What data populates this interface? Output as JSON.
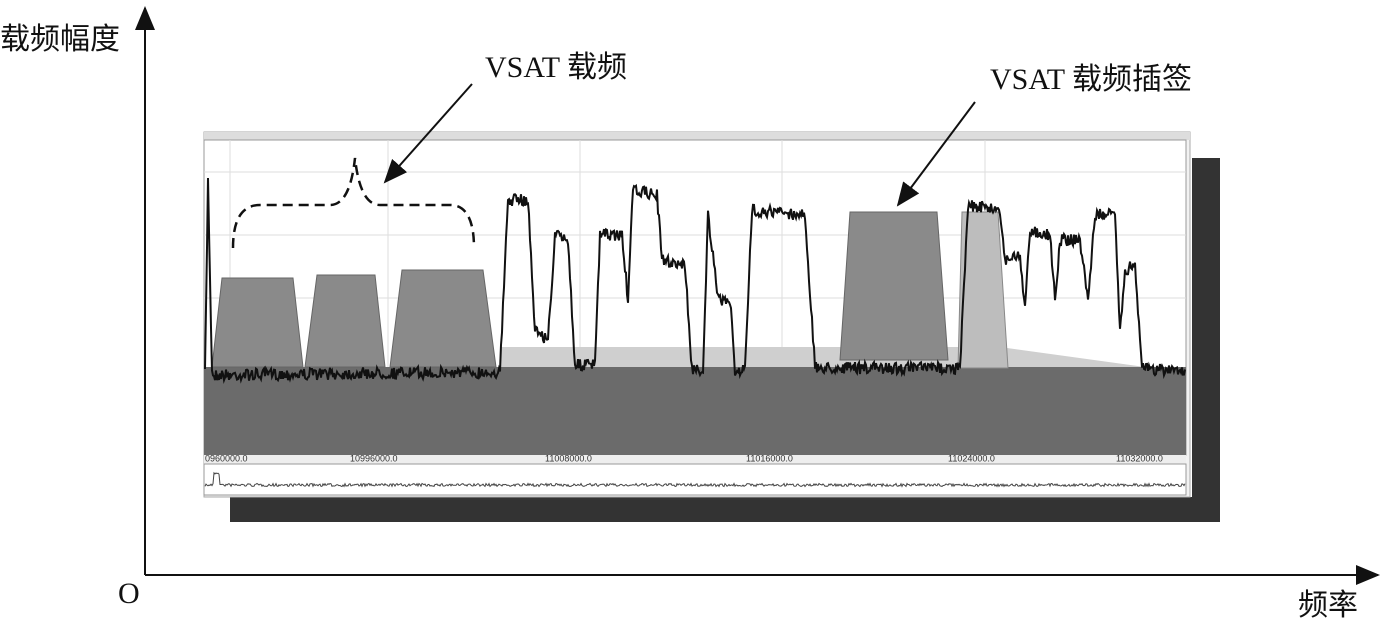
{
  "axes": {
    "y_label": "载频幅度",
    "x_label": "频率",
    "origin": "O"
  },
  "annotations": {
    "carrier": "VSAT 载频",
    "inserted": "VSAT 载频插签"
  },
  "spectrum": {
    "axis_labels": [
      "0960000.0",
      "10996000.0",
      "11008000.0",
      "11016000.0",
      "11024000.0",
      "11032000.0"
    ]
  }
}
